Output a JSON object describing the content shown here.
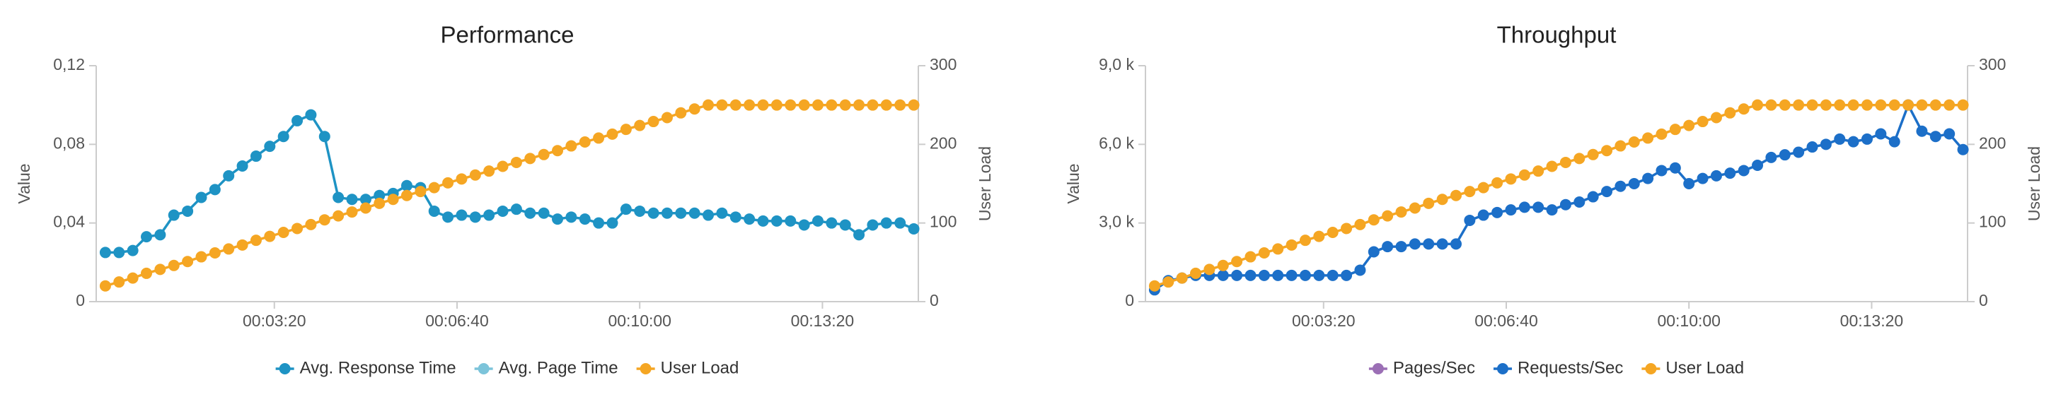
{
  "chart_data": [
    {
      "type": "line",
      "title": "Performance",
      "y_label": "Value",
      "y2_label": "User Load",
      "x": [
        15,
        30,
        45,
        60,
        75,
        90,
        105,
        120,
        135,
        150,
        165,
        180,
        195,
        210,
        225,
        240,
        255,
        270,
        285,
        300,
        315,
        330,
        345,
        360,
        375,
        390,
        405,
        420,
        435,
        450,
        465,
        480,
        495,
        510,
        525,
        540,
        555,
        570,
        585,
        600,
        615,
        630,
        645,
        660,
        675,
        690,
        705,
        720,
        735,
        750,
        765,
        780,
        795,
        810,
        825,
        840,
        855,
        870,
        885,
        900
      ],
      "xlim": [
        5,
        905
      ],
      "xticks": [
        {
          "value": 200,
          "label": "00:03:20"
        },
        {
          "value": 400,
          "label": "00:06:40"
        },
        {
          "value": 600,
          "label": "00:10:00"
        },
        {
          "value": 800,
          "label": "00:13:20"
        }
      ],
      "ylim": [
        0,
        0.12
      ],
      "yticks": [
        0,
        {
          "value": 0.04,
          "label": "0,04"
        },
        {
          "value": 0.08,
          "label": "0,08"
        },
        {
          "value": 0.12,
          "label": "0,12"
        }
      ],
      "y2lim": [
        0,
        300
      ],
      "y2ticks": [
        0,
        100,
        200,
        300
      ],
      "series": [
        {
          "name": "Avg. Response Time",
          "color": "#1e93c4",
          "values": [
            0.025,
            0.025,
            0.026,
            0.033,
            0.034,
            0.044,
            0.046,
            0.053,
            0.057,
            0.064,
            0.069,
            0.074,
            0.079,
            0.084,
            0.092,
            0.095,
            0.084,
            0.053,
            0.052,
            0.052,
            0.054,
            0.055,
            0.059,
            0.058,
            0.046,
            0.043,
            0.044,
            0.043,
            0.044,
            0.046,
            0.047,
            0.045,
            0.045,
            0.042,
            0.043,
            0.042,
            0.04,
            0.04,
            0.047,
            0.046,
            0.045,
            0.045,
            0.045,
            0.045,
            0.044,
            0.045,
            0.043,
            0.042,
            0.041,
            0.041,
            0.041,
            0.039,
            0.041,
            0.04,
            0.039,
            0.034,
            0.039,
            0.04,
            0.04,
            0.037
          ]
        },
        {
          "name": "Avg. Page Time",
          "color": "#7cc4da",
          "values": [
            null,
            null,
            null,
            null,
            null,
            null,
            null,
            null,
            null,
            null,
            null,
            null,
            null,
            null,
            null,
            null,
            null,
            null,
            null,
            null,
            null,
            null,
            null,
            null,
            null,
            null,
            null,
            null,
            null,
            null,
            null,
            null,
            null,
            null,
            null,
            null,
            null,
            null,
            null,
            null,
            null,
            null,
            null,
            null,
            null,
            null,
            null,
            null,
            null,
            null,
            null,
            null,
            null,
            null,
            null,
            null,
            null,
            null,
            null,
            null
          ]
        },
        {
          "name": "User Load",
          "color": "#f5a623",
          "axis": "y2",
          "values": [
            20,
            25,
            30,
            36,
            41,
            46,
            51,
            57,
            62,
            67,
            72,
            78,
            83,
            88,
            93,
            98,
            104,
            109,
            114,
            119,
            125,
            130,
            135,
            140,
            145,
            151,
            156,
            161,
            166,
            172,
            177,
            182,
            187,
            192,
            198,
            203,
            208,
            213,
            219,
            224,
            229,
            234,
            240,
            245,
            250,
            250,
            250,
            250,
            250,
            250,
            250,
            250,
            250,
            250,
            250,
            250,
            250,
            250,
            250,
            250
          ]
        }
      ]
    },
    {
      "type": "line",
      "title": "Throughput",
      "y_label": "Value",
      "y2_label": "User Load",
      "x": [
        15,
        30,
        45,
        60,
        75,
        90,
        105,
        120,
        135,
        150,
        165,
        180,
        195,
        210,
        225,
        240,
        255,
        270,
        285,
        300,
        315,
        330,
        345,
        360,
        375,
        390,
        405,
        420,
        435,
        450,
        465,
        480,
        495,
        510,
        525,
        540,
        555,
        570,
        585,
        600,
        615,
        630,
        645,
        660,
        675,
        690,
        705,
        720,
        735,
        750,
        765,
        780,
        795,
        810,
        825,
        840,
        855,
        870,
        885,
        900
      ],
      "xlim": [
        5,
        905
      ],
      "xticks": [
        {
          "value": 200,
          "label": "00:03:20"
        },
        {
          "value": 400,
          "label": "00:06:40"
        },
        {
          "value": 600,
          "label": "00:10:00"
        },
        {
          "value": 800,
          "label": "00:13:20"
        }
      ],
      "ylim": [
        0,
        9000
      ],
      "yticks": [
        0,
        {
          "value": 3000,
          "label": "3,0 k"
        },
        {
          "value": 6000,
          "label": "6,0 k"
        },
        {
          "value": 9000,
          "label": "9,0 k"
        }
      ],
      "y2lim": [
        0,
        300
      ],
      "y2ticks": [
        0,
        100,
        200,
        300
      ],
      "series": [
        {
          "name": "Pages/Sec",
          "color": "#9b6fb5",
          "values": [
            null,
            null,
            null,
            null,
            null,
            null,
            null,
            null,
            null,
            null,
            null,
            null,
            null,
            null,
            null,
            null,
            null,
            null,
            null,
            null,
            null,
            null,
            null,
            null,
            null,
            null,
            null,
            null,
            null,
            null,
            null,
            null,
            null,
            null,
            null,
            null,
            null,
            null,
            null,
            null,
            null,
            null,
            null,
            null,
            null,
            null,
            null,
            null,
            null,
            null,
            null,
            null,
            null,
            null,
            null,
            null,
            null,
            null,
            null,
            null
          ]
        },
        {
          "name": "Requests/Sec",
          "color": "#1c6fc8",
          "values": [
            450,
            800,
            900,
            1000,
            1000,
            1000,
            1000,
            1000,
            1000,
            1000,
            1000,
            1000,
            1000,
            1000,
            1000,
            1200,
            1900,
            2100,
            2100,
            2200,
            2200,
            2200,
            2200,
            3100,
            3300,
            3400,
            3500,
            3600,
            3600,
            3500,
            3700,
            3800,
            4000,
            4200,
            4400,
            4500,
            4700,
            5000,
            5100,
            4500,
            4700,
            4800,
            4900,
            5000,
            5200,
            5500,
            5600,
            5700,
            5900,
            6000,
            6200,
            6100,
            6200,
            6400,
            6100,
            7500,
            6500,
            6300,
            6400,
            5800
          ]
        },
        {
          "name": "User Load",
          "color": "#f5a623",
          "axis": "y2",
          "values": [
            20,
            25,
            30,
            36,
            41,
            46,
            51,
            57,
            62,
            67,
            72,
            78,
            83,
            88,
            93,
            98,
            104,
            109,
            114,
            119,
            125,
            130,
            135,
            140,
            145,
            151,
            156,
            161,
            166,
            172,
            177,
            182,
            187,
            192,
            198,
            203,
            208,
            213,
            219,
            224,
            229,
            234,
            240,
            245,
            250,
            250,
            250,
            250,
            250,
            250,
            250,
            250,
            250,
            250,
            250,
            250,
            250,
            250,
            250,
            250
          ]
        }
      ]
    }
  ]
}
